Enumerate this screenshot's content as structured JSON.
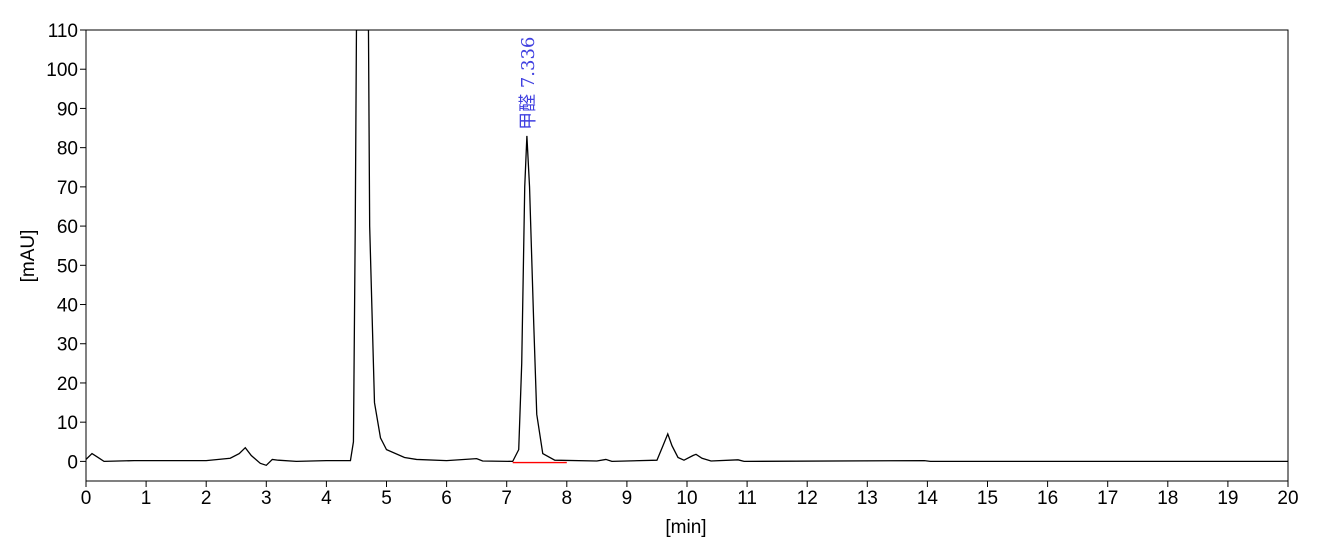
{
  "chart_data": {
    "type": "line",
    "xlabel": "[min]",
    "ylabel": "[mAU]",
    "xlim": [
      0,
      20
    ],
    "ylim": [
      -5,
      110
    ],
    "xticks": [
      0,
      1,
      2,
      3,
      4,
      5,
      6,
      7,
      8,
      9,
      10,
      11,
      12,
      13,
      14,
      15,
      16,
      17,
      18,
      19,
      20
    ],
    "yticks": [
      0,
      10,
      20,
      30,
      40,
      50,
      60,
      70,
      80,
      90,
      100,
      110
    ],
    "annotations": [
      {
        "text": "甲醛  7.336",
        "x": 7.336,
        "y": 83,
        "color": "#4040e0"
      }
    ],
    "series": [
      {
        "color": "#000000",
        "x": [
          0,
          0.1,
          0.2,
          0.3,
          0.8,
          2.0,
          2.4,
          2.55,
          2.65,
          2.75,
          2.9,
          3.0,
          3.1,
          3.2,
          3.5,
          4.0,
          4.4,
          4.45,
          4.48,
          4.5,
          4.7,
          4.72,
          4.8,
          4.9,
          5.0,
          5.3,
          5.5,
          6.0,
          6.5,
          6.6,
          7.1,
          7.2,
          7.25,
          7.3,
          7.336,
          7.38,
          7.45,
          7.5,
          7.6,
          7.8,
          8.5,
          8.65,
          8.75,
          9.5,
          9.6,
          9.68,
          9.75,
          9.85,
          9.95,
          10.1,
          10.15,
          10.25,
          10.4,
          10.85,
          10.95,
          13.95,
          14.05,
          20
        ],
        "values": [
          0.5,
          2,
          1,
          0,
          0.2,
          0.2,
          0.8,
          2,
          3.5,
          1.5,
          -0.5,
          -1,
          0.5,
          0.3,
          0,
          0.2,
          0.2,
          5,
          60,
          110,
          110,
          60,
          15,
          6,
          3,
          1,
          0.5,
          0.2,
          0.7,
          0.1,
          0,
          3,
          25,
          70,
          83,
          70,
          35,
          12,
          2,
          0.3,
          0.1,
          0.5,
          0,
          0.3,
          4,
          7,
          4,
          1,
          0.3,
          1.5,
          1.8,
          0.8,
          0.1,
          0.4,
          0,
          0.2,
          0,
          0
        ]
      },
      {
        "color": "#ff0000",
        "x": [
          7.1,
          8.0
        ],
        "values": [
          -0.3,
          -0.3
        ]
      }
    ]
  }
}
